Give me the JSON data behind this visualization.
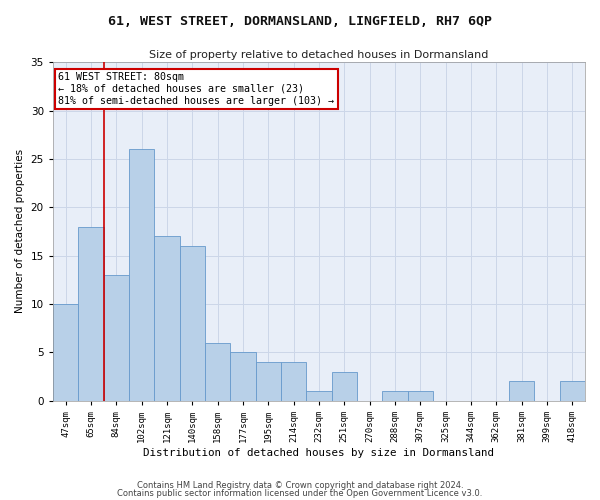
{
  "title1": "61, WEST STREET, DORMANSLAND, LINGFIELD, RH7 6QP",
  "title2": "Size of property relative to detached houses in Dormansland",
  "xlabel": "Distribution of detached houses by size in Dormansland",
  "ylabel": "Number of detached properties",
  "categories": [
    "47sqm",
    "65sqm",
    "84sqm",
    "102sqm",
    "121sqm",
    "140sqm",
    "158sqm",
    "177sqm",
    "195sqm",
    "214sqm",
    "232sqm",
    "251sqm",
    "270sqm",
    "288sqm",
    "307sqm",
    "325sqm",
    "344sqm",
    "362sqm",
    "381sqm",
    "399sqm",
    "418sqm"
  ],
  "values": [
    10,
    18,
    13,
    26,
    17,
    16,
    6,
    5,
    4,
    4,
    1,
    3,
    0,
    1,
    1,
    0,
    0,
    0,
    2,
    0,
    2
  ],
  "bar_color": "#b8d0e8",
  "bar_edge_color": "#6699cc",
  "bar_edge_width": 0.6,
  "vline_x_idx": 1.5,
  "vline_color": "#cc0000",
  "annotation_text": "61 WEST STREET: 80sqm\n← 18% of detached houses are smaller (23)\n81% of semi-detached houses are larger (103) →",
  "annotation_box_color": "#ffffff",
  "annotation_box_edge": "#cc0000",
  "ylim": [
    0,
    35
  ],
  "yticks": [
    0,
    5,
    10,
    15,
    20,
    25,
    30,
    35
  ],
  "grid_color": "#ccd6e8",
  "bg_color": "#e8eef8",
  "footer1": "Contains HM Land Registry data © Crown copyright and database right 2024.",
  "footer2": "Contains public sector information licensed under the Open Government Licence v3.0."
}
